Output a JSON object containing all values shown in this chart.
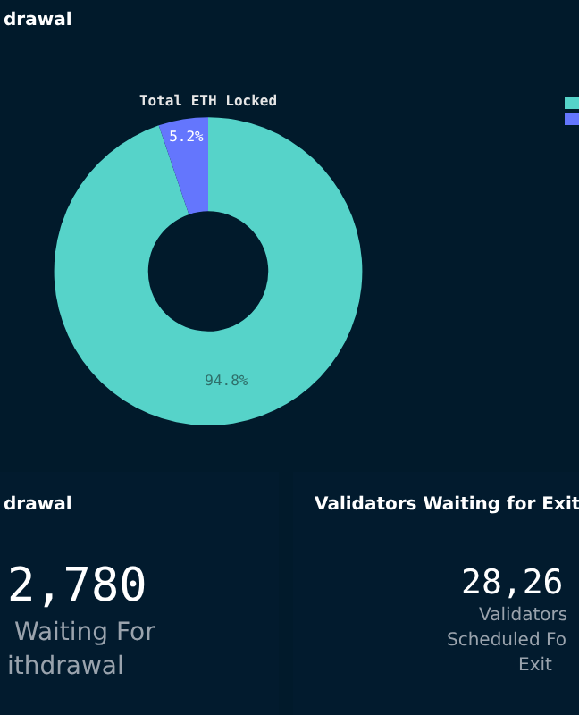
{
  "chart_data": {
    "type": "donut",
    "title": "Total ETH Locked",
    "categories": [
      null,
      null
    ],
    "values": [
      94.8,
      5.2
    ],
    "colors": [
      "#56d3c9",
      "#6476fd"
    ],
    "value_labels": [
      "94.8%",
      "5.2%"
    ],
    "annotations": [
      "drawal",
      "drawal",
      "2,780",
      "Waiting For",
      "ithdrawal",
      "Validators Waiting for Exit",
      "28,26",
      "Validators",
      "Scheduled Fo",
      "Exit"
    ]
  }
}
